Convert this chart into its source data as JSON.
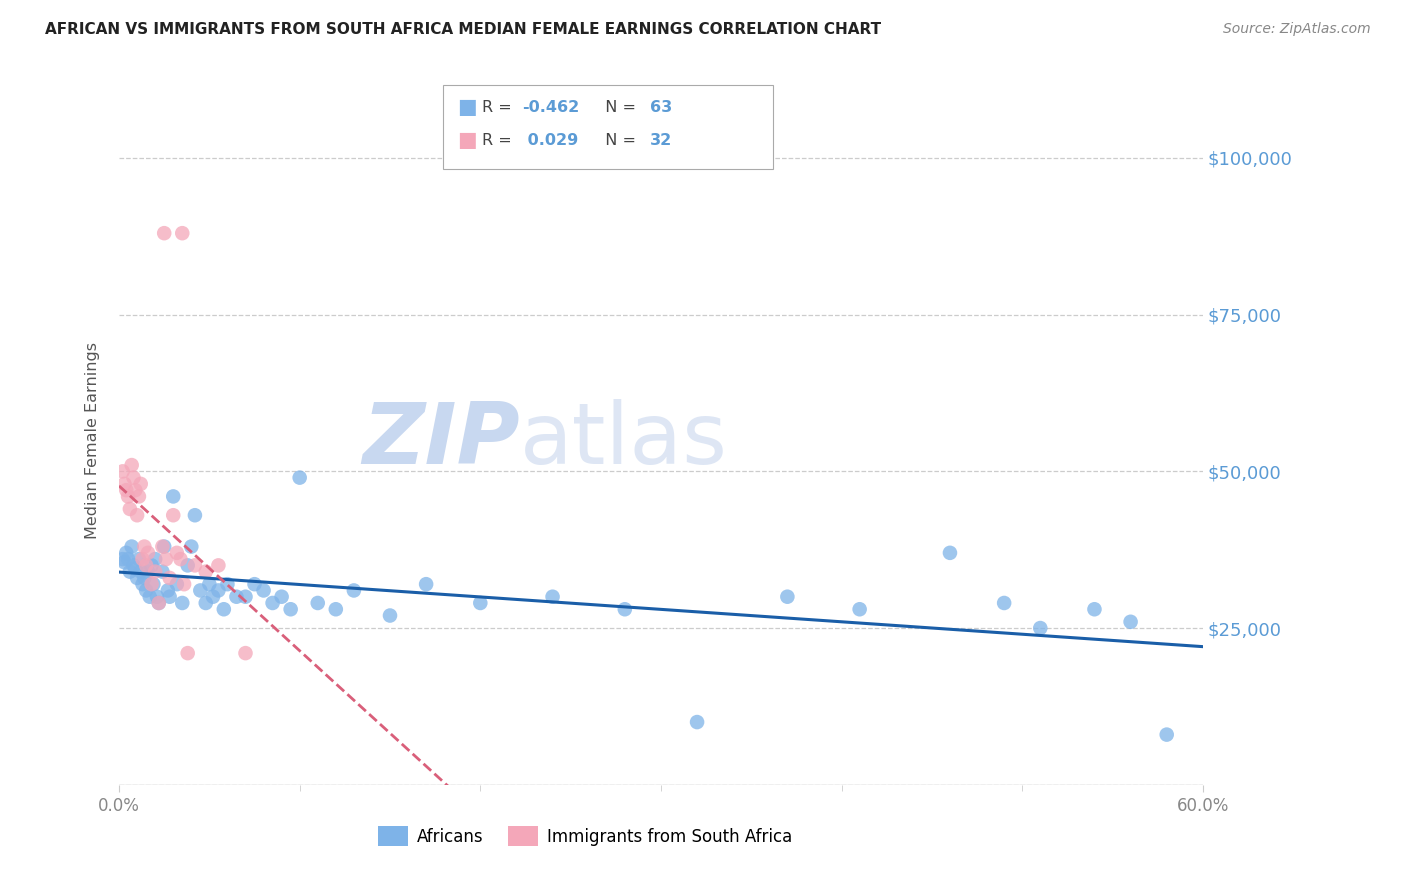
{
  "title": "AFRICAN VS IMMIGRANTS FROM SOUTH AFRICA MEDIAN FEMALE EARNINGS CORRELATION CHART",
  "source": "Source: ZipAtlas.com",
  "ylabel": "Median Female Earnings",
  "xlim": [
    0,
    0.6
  ],
  "ylim": [
    0,
    110000
  ],
  "yticks": [
    0,
    25000,
    50000,
    75000,
    100000
  ],
  "ytick_labels": [
    "",
    "$25,000",
    "$50,000",
    "$75,000",
    "$100,000"
  ],
  "xticks": [
    0.0,
    0.6
  ],
  "xtick_labels": [
    "0.0%",
    "60.0%"
  ],
  "africans_R": -0.462,
  "africans_N": 63,
  "immigrants_R": 0.029,
  "immigrants_N": 32,
  "africans_color": "#7EB3E8",
  "immigrants_color": "#F4A7B9",
  "africans_line_color": "#1A5EA8",
  "immigrants_line_color": "#D95F7A",
  "watermark_zip": "ZIP",
  "watermark_atlas": "atlas",
  "watermark_color": "#C8D8F0",
  "legend_africans_label": "Africans",
  "legend_immigrants_label": "Immigrants from South Africa",
  "africans_x": [
    0.002,
    0.003,
    0.004,
    0.005,
    0.006,
    0.007,
    0.008,
    0.009,
    0.01,
    0.011,
    0.012,
    0.013,
    0.014,
    0.015,
    0.016,
    0.017,
    0.018,
    0.019,
    0.02,
    0.021,
    0.022,
    0.024,
    0.025,
    0.027,
    0.028,
    0.03,
    0.032,
    0.035,
    0.038,
    0.04,
    0.042,
    0.045,
    0.048,
    0.05,
    0.052,
    0.055,
    0.058,
    0.06,
    0.065,
    0.07,
    0.075,
    0.08,
    0.085,
    0.09,
    0.095,
    0.1,
    0.11,
    0.12,
    0.13,
    0.15,
    0.17,
    0.2,
    0.24,
    0.28,
    0.32,
    0.37,
    0.41,
    0.46,
    0.49,
    0.51,
    0.54,
    0.56,
    0.58
  ],
  "africans_y": [
    36000,
    35500,
    37000,
    36000,
    34000,
    38000,
    35000,
    34500,
    33000,
    36000,
    34000,
    32000,
    33000,
    31000,
    34000,
    30000,
    35000,
    32000,
    36000,
    30000,
    29000,
    34000,
    38000,
    31000,
    30000,
    46000,
    32000,
    29000,
    35000,
    38000,
    43000,
    31000,
    29000,
    32000,
    30000,
    31000,
    28000,
    32000,
    30000,
    30000,
    32000,
    31000,
    29000,
    30000,
    28000,
    49000,
    29000,
    28000,
    31000,
    27000,
    32000,
    29000,
    30000,
    28000,
    10000,
    30000,
    28000,
    37000,
    29000,
    25000,
    28000,
    26000,
    8000
  ],
  "immigrants_x": [
    0.002,
    0.003,
    0.004,
    0.005,
    0.006,
    0.007,
    0.008,
    0.009,
    0.01,
    0.011,
    0.012,
    0.013,
    0.014,
    0.015,
    0.016,
    0.018,
    0.02,
    0.022,
    0.024,
    0.026,
    0.028,
    0.03,
    0.032,
    0.034,
    0.036,
    0.038,
    0.042,
    0.048,
    0.025,
    0.035,
    0.055,
    0.07
  ],
  "immigrants_y": [
    50000,
    48000,
    47000,
    46000,
    44000,
    51000,
    49000,
    47000,
    43000,
    46000,
    48000,
    36000,
    38000,
    35000,
    37000,
    32000,
    34000,
    29000,
    38000,
    36000,
    33000,
    43000,
    37000,
    36000,
    32000,
    21000,
    35000,
    34000,
    88000,
    88000,
    35000,
    21000
  ]
}
